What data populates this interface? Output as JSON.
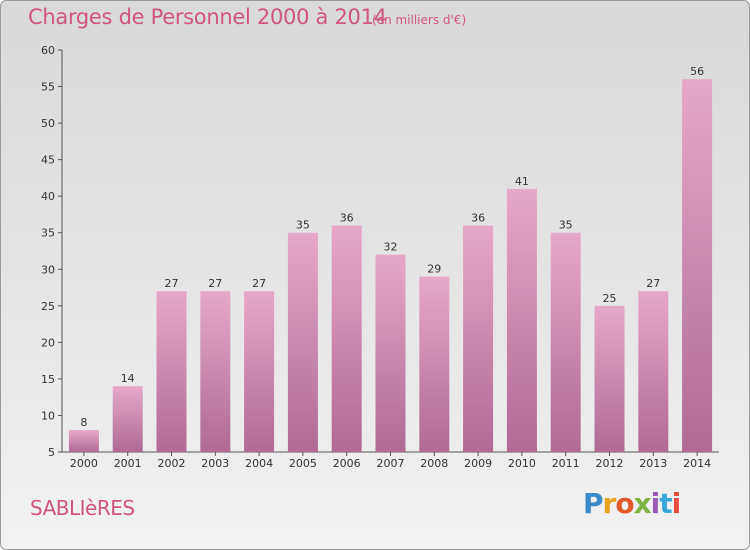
{
  "title": "Charges de Personnel 2000 à 2014",
  "subtitle": "(en milliers d'€)",
  "commune": "SABLIèRES",
  "logo": {
    "text": "Proxiti",
    "letters": [
      "P",
      "r",
      "o",
      "x",
      "i",
      "t",
      "i"
    ]
  },
  "colors": {
    "accent": "#d0557f",
    "bar_top": "#e6a8c9",
    "bar_bottom": "#b06a94"
  },
  "chart_data": {
    "type": "bar",
    "categories": [
      "2000",
      "2001",
      "2002",
      "2003",
      "2004",
      "2005",
      "2006",
      "2007",
      "2008",
      "2009",
      "2010",
      "2011",
      "2012",
      "2013",
      "2014"
    ],
    "values": [
      8,
      14,
      27,
      27,
      27,
      35,
      36,
      32,
      29,
      36,
      41,
      35,
      25,
      27,
      56
    ],
    "ylim": [
      5,
      60
    ],
    "yticks": [
      5,
      10,
      15,
      20,
      25,
      30,
      35,
      40,
      45,
      50,
      55,
      60
    ],
    "grid": false,
    "title": "Charges de Personnel 2000 à 2014",
    "xlabel": "",
    "ylabel": ""
  }
}
